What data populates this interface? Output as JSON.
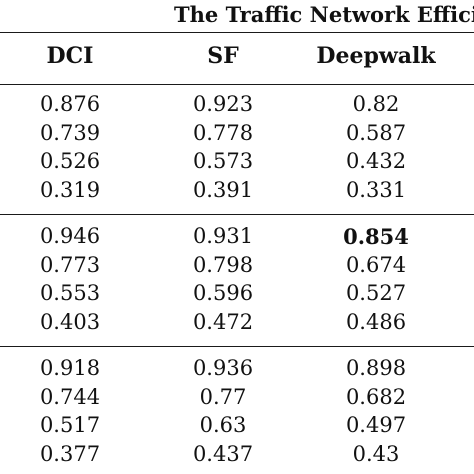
{
  "table": {
    "caption": "The Traffic Network Efficie",
    "headers": [
      "DCI",
      "SF",
      "Deepwalk"
    ],
    "groups": [
      {
        "rows": [
          [
            "0.876",
            "0.923",
            "0.82"
          ],
          [
            "0.739",
            "0.778",
            "0.587"
          ],
          [
            "0.526",
            "0.573",
            "0.432"
          ],
          [
            "0.319",
            "0.391",
            "0.331"
          ]
        ]
      },
      {
        "rows": [
          [
            "0.946",
            "0.931",
            "0.854"
          ],
          [
            "0.773",
            "0.798",
            "0.674"
          ],
          [
            "0.553",
            "0.596",
            "0.527"
          ],
          [
            "0.403",
            "0.472",
            "0.486"
          ]
        ],
        "bold_cells": [
          [
            0,
            2
          ]
        ]
      },
      {
        "rows": [
          [
            "0.918",
            "0.936",
            "0.898"
          ],
          [
            "0.744",
            "0.77",
            "0.682"
          ],
          [
            "0.517",
            "0.63",
            "0.497"
          ],
          [
            "0.377",
            "0.437",
            "0.43"
          ]
        ]
      }
    ]
  }
}
